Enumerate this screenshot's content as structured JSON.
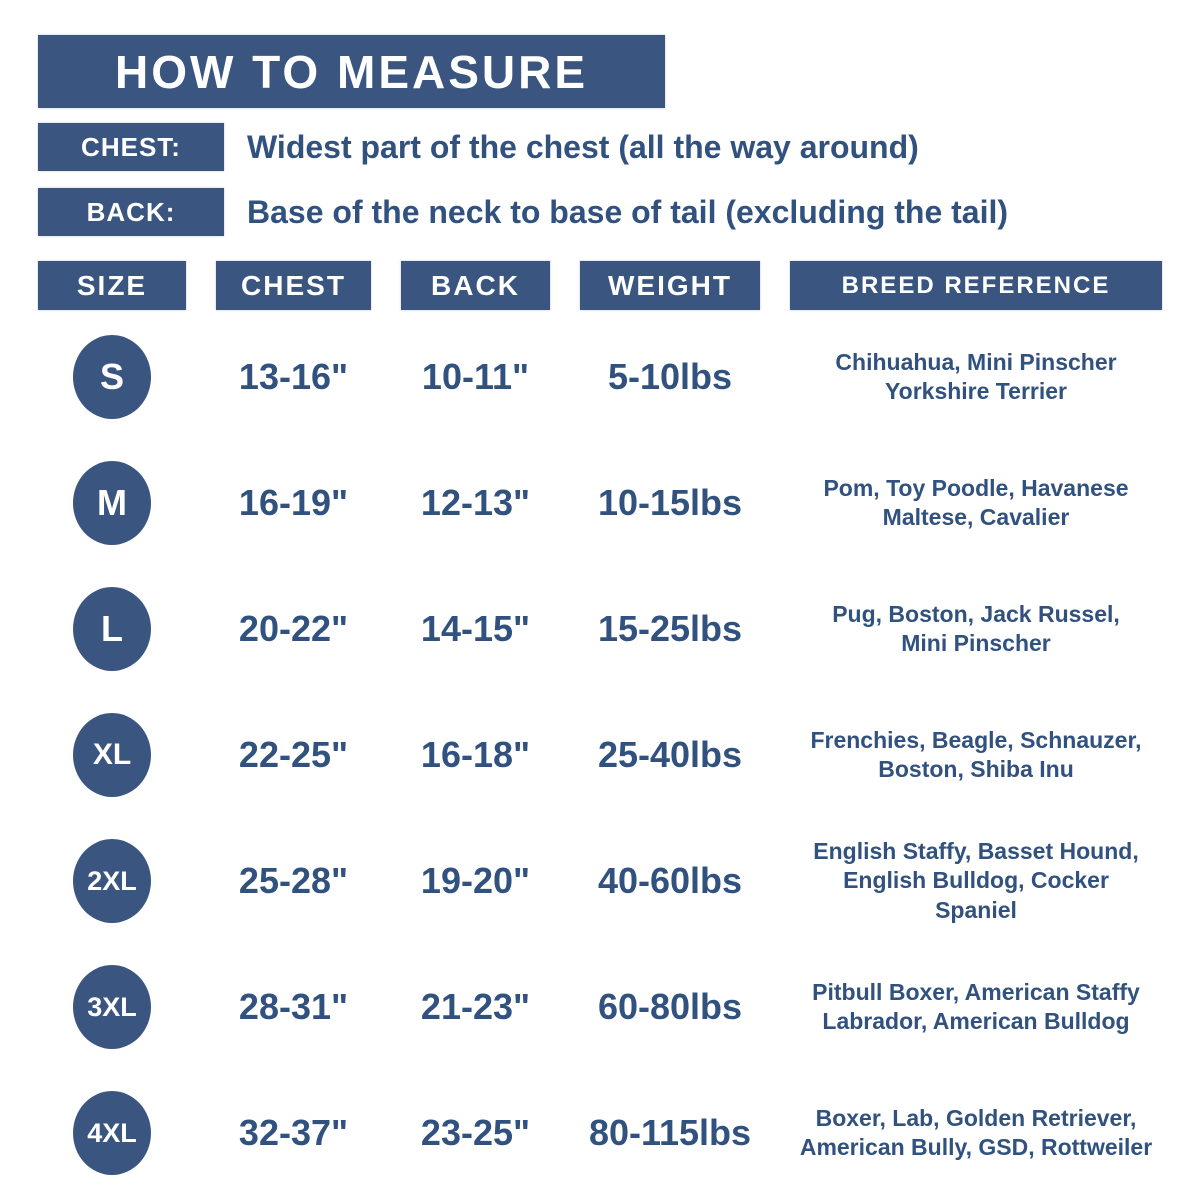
{
  "title": "HOW TO MEASURE",
  "colors": {
    "primary_blue": "#3a5680",
    "text_navy": "#31517f",
    "background": "#ffffff"
  },
  "instructions": [
    {
      "label": "CHEST:",
      "text": "Widest part of the chest (all the way around)"
    },
    {
      "label": "BACK:",
      "text": "Base of the neck to base of tail (excluding the tail)"
    }
  ],
  "table": {
    "headers": [
      "SIZE",
      "CHEST",
      "BACK",
      "WEIGHT",
      "BREED REFERENCE"
    ],
    "rows": [
      {
        "size": "S",
        "chest": "13-16\"",
        "back": "10-11\"",
        "weight": "5-10lbs",
        "breeds": "Chihuahua, Mini Pinscher\nYorkshire Terrier"
      },
      {
        "size": "M",
        "chest": "16-19\"",
        "back": "12-13\"",
        "weight": "10-15lbs",
        "breeds": "Pom, Toy Poodle, Havanese\nMaltese, Cavalier"
      },
      {
        "size": "L",
        "chest": "20-22\"",
        "back": "14-15\"",
        "weight": "15-25lbs",
        "breeds": "Pug, Boston, Jack Russel,\nMini Pinscher"
      },
      {
        "size": "XL",
        "chest": "22-25\"",
        "back": "16-18\"",
        "weight": "25-40lbs",
        "breeds": "Frenchies, Beagle, Schnauzer,\nBoston, Shiba Inu"
      },
      {
        "size": "2XL",
        "chest": "25-28\"",
        "back": "19-20\"",
        "weight": "40-60lbs",
        "breeds": "English Staffy, Basset Hound,\nEnglish Bulldog, Cocker\nSpaniel"
      },
      {
        "size": "3XL",
        "chest": "28-31\"",
        "back": "21-23\"",
        "weight": "60-80lbs",
        "breeds": "Pitbull Boxer, American Staffy\nLabrador, American Bulldog"
      },
      {
        "size": "4XL",
        "chest": "32-37\"",
        "back": "23-25\"",
        "weight": "80-115lbs",
        "breeds": "Boxer, Lab, Golden Retriever,\nAmerican Bully, GSD, Rottweiler"
      }
    ]
  }
}
